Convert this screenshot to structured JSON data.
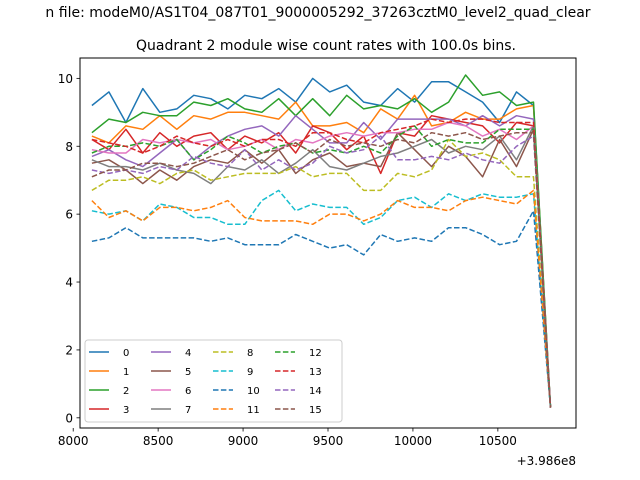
{
  "figure": {
    "suptitle": "n file: modeM0/AS1T04_087T01_9000005292_37263cztM0_level2_quad_clear",
    "title": "Quadrant 2 module wise count rates with 100.0s bins.",
    "offset_label": "+3.986e8"
  },
  "chart_data": {
    "type": "line",
    "title": "Quadrant 2 module wise count rates with 100.0s bins.",
    "xlabel": "",
    "ylabel": "",
    "x_offset": 398600000,
    "xlim": [
      8040,
      10960
    ],
    "ylim": [
      -0.3,
      10.6
    ],
    "xticks": [
      8000,
      8500,
      9000,
      9500,
      10000,
      10500
    ],
    "xtick_labels": [
      "8000",
      "8500",
      "9000",
      "9500",
      "10000",
      "10500"
    ],
    "yticks": [
      0,
      2,
      4,
      6,
      8,
      10
    ],
    "ytick_labels": [
      "0",
      "2",
      "4",
      "6",
      "8",
      "10"
    ],
    "grid": false,
    "legend_position": "lower-left",
    "legend_columns": 4,
    "x": [
      8110,
      8210,
      8310,
      8410,
      8510,
      8610,
      8710,
      8810,
      8910,
      9010,
      9110,
      9210,
      9310,
      9410,
      9510,
      9610,
      9710,
      9810,
      9910,
      10010,
      10110,
      10210,
      10310,
      10410,
      10510,
      10610,
      10710,
      10810
    ],
    "series": [
      {
        "name": "0",
        "color": "#1f77b4",
        "dash": "solid",
        "values": [
          9.2,
          9.6,
          8.7,
          9.7,
          9.0,
          9.1,
          9.5,
          9.4,
          9.1,
          9.5,
          9.4,
          9.7,
          9.3,
          10.0,
          9.6,
          9.8,
          9.3,
          9.2,
          9.7,
          9.3,
          9.9,
          9.9,
          9.6,
          9.3,
          8.7,
          9.6,
          9.2,
          0.3
        ]
      },
      {
        "name": "1",
        "color": "#ff7f0e",
        "dash": "solid",
        "values": [
          8.3,
          8.1,
          8.6,
          8.5,
          8.9,
          8.5,
          8.9,
          8.8,
          9.0,
          9.0,
          8.9,
          8.8,
          9.3,
          8.6,
          8.6,
          8.7,
          8.4,
          9.1,
          8.8,
          9.5,
          8.6,
          8.7,
          9.0,
          8.8,
          8.8,
          9.1,
          9.2,
          0.3
        ]
      },
      {
        "name": "2",
        "color": "#2ca02c",
        "dash": "solid",
        "values": [
          8.4,
          8.8,
          8.7,
          9.0,
          8.9,
          8.9,
          9.3,
          9.2,
          9.4,
          9.1,
          9.0,
          9.4,
          8.9,
          9.4,
          8.9,
          9.5,
          9.1,
          9.2,
          9.1,
          9.4,
          9.0,
          9.3,
          10.1,
          9.5,
          9.6,
          9.2,
          9.3,
          0.3
        ]
      },
      {
        "name": "3",
        "color": "#d62728",
        "dash": "solid",
        "values": [
          8.2,
          7.9,
          8.5,
          7.8,
          8.4,
          8.0,
          8.3,
          8.4,
          7.9,
          8.3,
          8.1,
          8.4,
          7.8,
          8.6,
          8.4,
          7.9,
          8.3,
          7.2,
          8.4,
          8.3,
          8.9,
          8.8,
          8.7,
          8.6,
          8.1,
          8.7,
          8.6,
          0.3
        ]
      },
      {
        "name": "4",
        "color": "#9467bd",
        "dash": "solid",
        "values": [
          7.7,
          7.9,
          7.6,
          7.4,
          7.8,
          8.2,
          7.6,
          8.0,
          8.3,
          8.5,
          8.6,
          8.3,
          8.9,
          8.5,
          8.1,
          8.1,
          8.7,
          8.2,
          8.8,
          8.8,
          8.8,
          8.8,
          8.6,
          8.9,
          8.6,
          8.9,
          8.8,
          0.3
        ]
      },
      {
        "name": "5",
        "color": "#8c564b",
        "dash": "solid",
        "values": [
          7.5,
          7.6,
          7.3,
          6.9,
          7.3,
          7.0,
          7.4,
          7.6,
          7.5,
          7.9,
          7.5,
          7.9,
          7.2,
          7.6,
          7.8,
          7.4,
          7.5,
          7.4,
          8.4,
          7.9,
          7.4,
          8.0,
          7.7,
          7.1,
          8.2,
          7.4,
          8.5,
          0.3
        ]
      },
      {
        "name": "6",
        "color": "#e377c2",
        "dash": "solid",
        "values": [
          7.9,
          7.8,
          7.8,
          8.2,
          8.1,
          8.2,
          8.1,
          8.2,
          7.9,
          8.0,
          8.2,
          7.9,
          8.2,
          8.1,
          8.3,
          8.4,
          8.3,
          8.4,
          8.4,
          8.5,
          8.5,
          8.7,
          8.6,
          8.3,
          8.5,
          8.2,
          8.6,
          0.3
        ]
      },
      {
        "name": "7",
        "color": "#7f7f7f",
        "dash": "solid",
        "values": [
          7.6,
          7.4,
          7.4,
          7.3,
          7.5,
          7.3,
          7.2,
          6.9,
          7.4,
          7.3,
          7.6,
          7.2,
          7.5,
          7.9,
          7.4,
          7.3,
          7.5,
          7.7,
          7.8,
          8.0,
          8.2,
          7.8,
          8.0,
          7.9,
          8.3,
          7.6,
          8.6,
          0.3
        ]
      },
      {
        "name": "8",
        "color": "#bcbd22",
        "dash": "dashed",
        "values": [
          6.7,
          7.0,
          7.0,
          7.1,
          6.9,
          7.2,
          7.3,
          7.0,
          7.1,
          7.2,
          7.2,
          7.2,
          7.4,
          7.1,
          7.2,
          7.2,
          6.7,
          6.7,
          7.2,
          7.1,
          7.3,
          8.2,
          7.7,
          7.8,
          7.6,
          7.1,
          7.1,
          0.3
        ]
      },
      {
        "name": "9",
        "color": "#17becf",
        "dash": "dashed",
        "values": [
          6.1,
          6.0,
          6.1,
          5.8,
          6.3,
          6.2,
          5.9,
          5.9,
          5.7,
          5.7,
          6.4,
          6.7,
          6.1,
          6.3,
          6.2,
          6.2,
          5.7,
          5.9,
          6.4,
          6.5,
          6.2,
          6.6,
          6.4,
          6.6,
          6.5,
          6.5,
          6.6,
          0.3
        ]
      },
      {
        "name": "10",
        "color": "#1f77b4",
        "dash": "dashed",
        "values": [
          5.2,
          5.3,
          5.6,
          5.3,
          5.3,
          5.3,
          5.3,
          5.2,
          5.3,
          5.1,
          5.1,
          5.1,
          5.4,
          5.2,
          5.0,
          5.1,
          4.8,
          5.4,
          5.2,
          5.3,
          5.2,
          5.6,
          5.6,
          5.4,
          5.1,
          5.2,
          6.1,
          0.3
        ]
      },
      {
        "name": "11",
        "color": "#ff7f0e",
        "dash": "dashed",
        "values": [
          6.4,
          5.9,
          6.1,
          5.8,
          6.2,
          6.2,
          6.1,
          6.2,
          6.4,
          5.9,
          5.8,
          5.8,
          5.8,
          5.7,
          6.0,
          6.0,
          5.8,
          6.0,
          6.4,
          6.2,
          6.2,
          6.1,
          6.4,
          6.5,
          6.4,
          6.3,
          6.7,
          0.3
        ]
      },
      {
        "name": "12",
        "color": "#2ca02c",
        "dash": "dashed",
        "values": [
          7.8,
          8.0,
          8.0,
          8.1,
          8.0,
          8.2,
          7.6,
          7.9,
          8.3,
          8.1,
          7.8,
          8.0,
          8.1,
          7.8,
          7.9,
          7.8,
          8.0,
          7.8,
          8.3,
          8.6,
          8.0,
          8.2,
          8.1,
          8.1,
          8.5,
          8.5,
          8.5,
          0.3
        ]
      },
      {
        "name": "13",
        "color": "#d62728",
        "dash": "dashed",
        "values": [
          8.2,
          8.1,
          8.0,
          7.8,
          8.0,
          8.3,
          8.1,
          8.0,
          8.2,
          8.0,
          8.2,
          8.2,
          8.0,
          8.4,
          8.4,
          8.2,
          8.1,
          8.4,
          8.5,
          8.6,
          8.8,
          8.7,
          8.8,
          8.8,
          8.7,
          8.7,
          8.7,
          0.3
        ]
      },
      {
        "name": "14",
        "color": "#9467bd",
        "dash": "dashed",
        "values": [
          7.3,
          7.2,
          7.3,
          7.2,
          7.4,
          7.3,
          7.7,
          7.5,
          7.4,
          7.9,
          7.3,
          7.6,
          7.3,
          7.5,
          8.0,
          7.8,
          7.9,
          8.3,
          7.6,
          7.6,
          7.7,
          7.6,
          7.8,
          7.6,
          7.5,
          8.0,
          8.3,
          0.3
        ]
      },
      {
        "name": "15",
        "color": "#8c564b",
        "dash": "dashed",
        "values": [
          7.1,
          7.3,
          7.3,
          7.5,
          7.5,
          7.4,
          7.5,
          7.7,
          7.9,
          7.6,
          7.8,
          7.9,
          8.1,
          7.8,
          8.2,
          8.0,
          8.1,
          8.0,
          8.2,
          8.1,
          8.4,
          8.3,
          8.4,
          8.2,
          8.3,
          8.4,
          8.4,
          0.3
        ]
      }
    ]
  }
}
